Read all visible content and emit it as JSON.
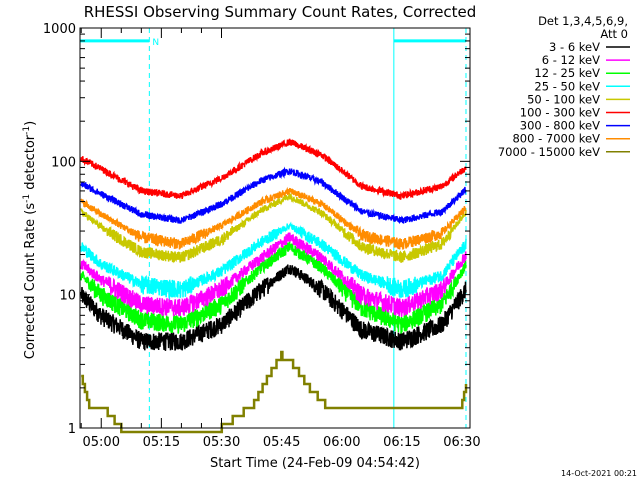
{
  "chart_data": {
    "type": "line",
    "title": "RHESSI Observing Summary Count Rates, Corrected",
    "xlabel": "Start Time (24-Feb-09 04:54:42)",
    "ylabel_main": "Corrected Count Rate (s",
    "ylabel_sup1": "-1",
    "ylabel_mid": " detector",
    "ylabel_sup2": "-1",
    "ylabel_end": ")",
    "yscale": "log",
    "ylim": [
      1,
      1000
    ],
    "y_ticks": [
      {
        "value": 1,
        "label": "1"
      },
      {
        "value": 10,
        "label": "10"
      },
      {
        "value": 100,
        "label": "100"
      },
      {
        "value": 1000,
        "label": "1000"
      }
    ],
    "xlim": [
      "04:54:42",
      "06:32:00"
    ],
    "x_ticks": [
      {
        "value": "05:00",
        "label": "05:00"
      },
      {
        "value": "05:15",
        "label": "05:15"
      },
      {
        "value": "05:30",
        "label": "05:30"
      },
      {
        "value": "05:45",
        "label": "05:45"
      },
      {
        "value": "06:00",
        "label": "06:00"
      },
      {
        "value": "06:15",
        "label": "06:15"
      },
      {
        "value": "06:30",
        "label": "06:30"
      }
    ],
    "legend_header": [
      "Det 1,3,4,5,6,9,",
      "Att 0"
    ],
    "legend_position": "right",
    "series": [
      {
        "name": "3 - 6 keV",
        "color": "#000000",
        "x": [
          "04:55",
          "05:00",
          "05:10",
          "05:20",
          "05:30",
          "05:40",
          "05:47",
          "05:55",
          "06:05",
          "06:15",
          "06:25",
          "06:31"
        ],
        "values": [
          10,
          7,
          4.5,
          4.5,
          6,
          11,
          16,
          11,
          5.5,
          4.5,
          6,
          11
        ]
      },
      {
        "name": "6 - 12 keV",
        "color": "#ff00ff",
        "x": [
          "04:55",
          "05:00",
          "05:10",
          "05:20",
          "05:30",
          "05:40",
          "05:47",
          "05:55",
          "06:05",
          "06:15",
          "06:25",
          "06:31"
        ],
        "values": [
          17,
          13,
          8.5,
          8,
          11,
          19,
          27,
          19,
          10,
          8,
          11,
          20
        ]
      },
      {
        "name": "12 - 25 keV",
        "color": "#00ff00",
        "x": [
          "04:55",
          "05:00",
          "05:10",
          "05:20",
          "05:30",
          "05:40",
          "05:47",
          "05:55",
          "06:05",
          "06:15",
          "06:25",
          "06:31"
        ],
        "values": [
          14,
          10,
          6.5,
          6,
          8.5,
          16,
          23,
          16,
          8,
          6,
          8.5,
          17
        ]
      },
      {
        "name": "25 - 50 keV",
        "color": "#00ffff",
        "x": [
          "04:55",
          "05:00",
          "05:10",
          "05:20",
          "05:30",
          "05:40",
          "05:47",
          "05:55",
          "06:05",
          "06:15",
          "06:25",
          "06:31"
        ],
        "values": [
          23,
          17,
          12,
          11,
          15,
          25,
          33,
          24,
          14,
          11,
          14,
          24
        ]
      },
      {
        "name": "50 - 100 keV",
        "color": "#c8c800",
        "x": [
          "04:55",
          "05:00",
          "05:10",
          "05:20",
          "05:30",
          "05:40",
          "05:47",
          "05:55",
          "06:05",
          "06:15",
          "06:25",
          "06:31"
        ],
        "values": [
          42,
          32,
          21,
          19,
          26,
          43,
          55,
          41,
          23,
          19,
          24,
          42
        ]
      },
      {
        "name": "100 - 300 keV",
        "color": "#ff0000",
        "x": [
          "04:55",
          "05:00",
          "05:10",
          "05:20",
          "05:30",
          "05:40",
          "05:47",
          "05:55",
          "06:05",
          "06:15",
          "06:25",
          "06:31"
        ],
        "values": [
          105,
          88,
          60,
          55,
          75,
          115,
          140,
          112,
          65,
          55,
          65,
          90
        ]
      },
      {
        "name": "300 - 800 keV",
        "color": "#0000ff",
        "x": [
          "04:55",
          "05:00",
          "05:10",
          "05:20",
          "05:30",
          "05:40",
          "05:47",
          "05:55",
          "06:05",
          "06:15",
          "06:25",
          "06:31"
        ],
        "values": [
          68,
          57,
          40,
          36,
          48,
          72,
          85,
          70,
          42,
          36,
          42,
          62
        ]
      },
      {
        "name": "800 - 7000 keV",
        "color": "#ff8c00",
        "x": [
          "04:55",
          "05:00",
          "05:10",
          "05:20",
          "05:30",
          "05:40",
          "05:47",
          "05:55",
          "06:05",
          "06:15",
          "06:25",
          "06:31"
        ],
        "values": [
          50,
          40,
          27,
          24,
          33,
          50,
          60,
          48,
          28,
          24,
          29,
          45
        ]
      },
      {
        "name": "7000 - 15000 keV",
        "color": "#808000",
        "x": [
          "04:55",
          "04:57",
          "05:00",
          "05:05",
          "05:30",
          "05:38",
          "05:42",
          "05:45",
          "05:48",
          "05:52",
          "05:56",
          "06:30",
          "06:31"
        ],
        "values": [
          2.5,
          1.5,
          1.5,
          1,
          1,
          1.5,
          2.5,
          3.5,
          3,
          2,
          1.5,
          1.5,
          2
        ]
      }
    ],
    "markers": [
      {
        "type": "solid-vline",
        "x": "04:54:42",
        "color": "#00ffff"
      },
      {
        "type": "dashed-vline",
        "x": "05:12",
        "color": "#00ffff"
      },
      {
        "type": "solid-vline",
        "x": "06:13",
        "color": "#00ffff"
      },
      {
        "type": "dashed-vline",
        "x": "06:31",
        "color": "#00ffff"
      },
      {
        "type": "bar",
        "x_start": "04:54:42",
        "x_end": "05:12",
        "y": 800,
        "label": "N",
        "color": "#00ffff"
      },
      {
        "type": "bar",
        "x_start": "06:13",
        "x_end": "06:31",
        "y": 800,
        "label": "",
        "color": "#00ffff"
      }
    ],
    "footer_timestamp": "14-Oct-2021 00:21"
  }
}
